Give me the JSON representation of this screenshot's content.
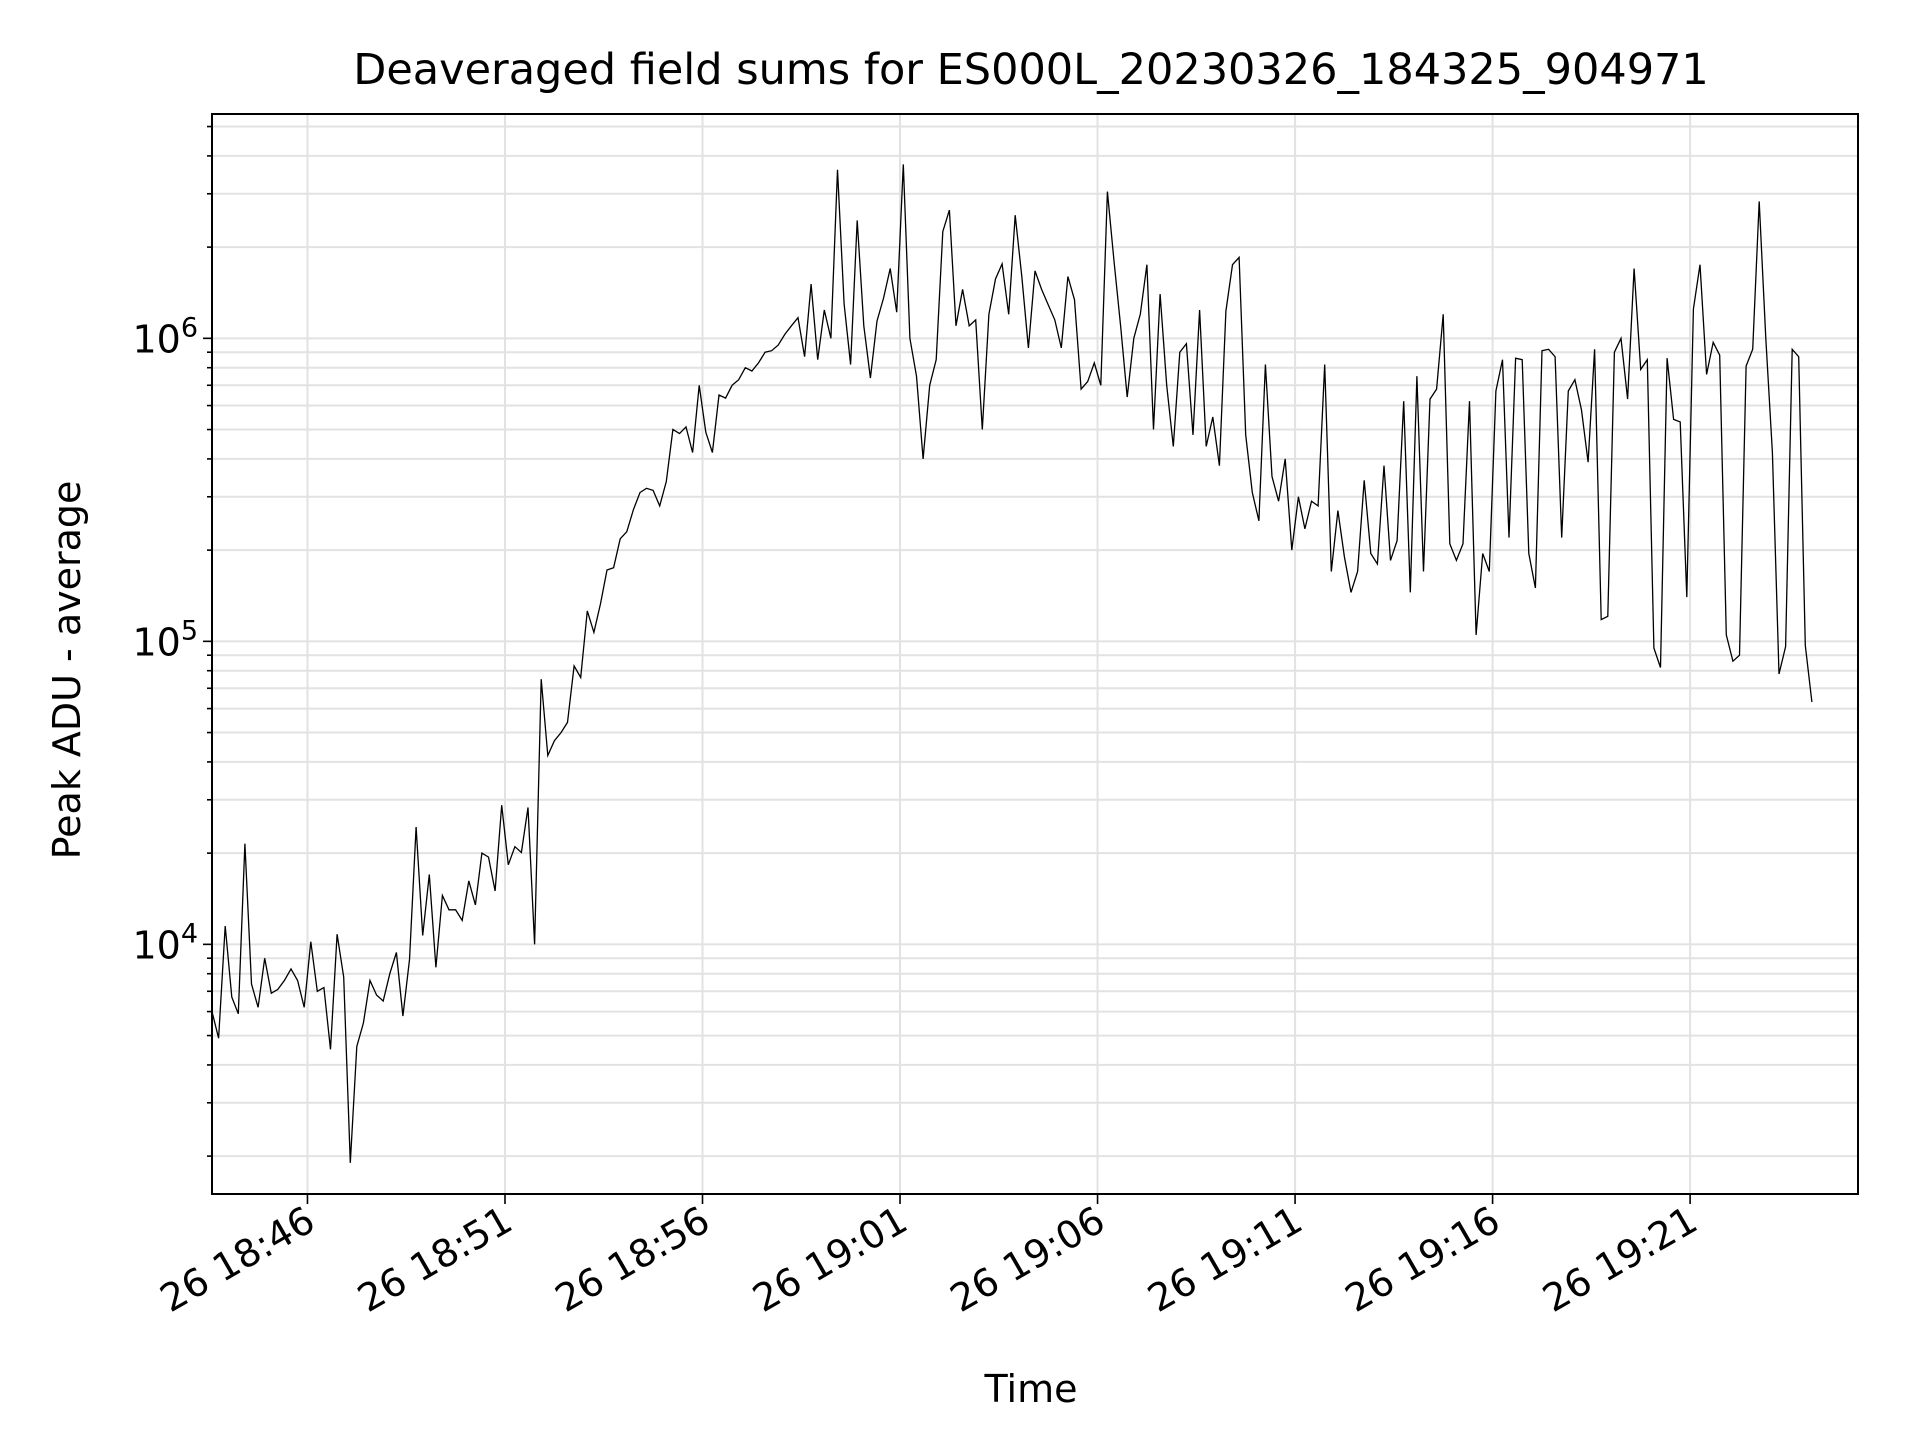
{
  "chart_data": {
    "type": "line",
    "title": "Deaveraged field sums for ES000L_20230326_184325_904971",
    "xlabel": "Time",
    "ylabel": "Peak ADU - average",
    "yscale": "log",
    "ylim": [
      1500,
      5500000
    ],
    "xlim": [
      "2023-03-26T18:43:35",
      "2023-03-26T19:25:15"
    ],
    "grid": true,
    "series_color": "#000000",
    "x_ticks": [
      {
        "label": "26 18:46",
        "t": "2023-03-26T18:46:00"
      },
      {
        "label": "26 18:51",
        "t": "2023-03-26T18:51:00"
      },
      {
        "label": "26 18:56",
        "t": "2023-03-26T18:56:00"
      },
      {
        "label": "26 19:01",
        "t": "2023-03-26T19:01:00"
      },
      {
        "label": "26 19:06",
        "t": "2023-03-26T19:06:00"
      },
      {
        "label": "26 19:11",
        "t": "2023-03-26T19:11:00"
      },
      {
        "label": "26 19:16",
        "t": "2023-03-26T19:16:00"
      },
      {
        "label": "26 19:21",
        "t": "2023-03-26T19:21:00"
      }
    ],
    "y_ticks": [
      {
        "base": "10",
        "exp": "4",
        "value": 10000
      },
      {
        "base": "10",
        "exp": "5",
        "value": 100000
      },
      {
        "base": "10",
        "exp": "6",
        "value": 1000000
      }
    ],
    "series": [
      {
        "t_start": "2023-03-26T18:43:35",
        "t_step_seconds": 10,
        "values": [
          6000,
          4900,
          11500,
          6700,
          5900,
          21500,
          7400,
          6200,
          9000,
          6900,
          7100,
          7600,
          8300,
          7600,
          6200,
          10200,
          7000,
          7200,
          4500,
          10800,
          7800,
          1900,
          4600,
          5500,
          7600,
          6800,
          6500,
          8000,
          9400,
          5800,
          8900,
          24400,
          10700,
          17000,
          8400,
          14500,
          13000,
          13000,
          12000,
          16200,
          13500,
          20000,
          19400,
          15000,
          28800,
          18300,
          21000,
          20100,
          28300,
          10000,
          75000,
          42000,
          47000,
          50000,
          54000,
          83000,
          76000,
          126000,
          107000,
          133000,
          172000,
          175000,
          218000,
          230000,
          272000,
          310000,
          320000,
          315000,
          280000,
          337000,
          500000,
          485000,
          510000,
          420000,
          700000,
          490000,
          420000,
          650000,
          635000,
          700000,
          730000,
          800000,
          780000,
          830000,
          900000,
          910000,
          950000,
          1030000,
          1100000,
          1170000,
          870000,
          1510000,
          850000,
          1240000,
          1000000,
          3600000,
          1300000,
          820000,
          2450000,
          1100000,
          740000,
          1140000,
          1360000,
          1700000,
          1220000,
          3750000,
          1000000,
          750000,
          400000,
          700000,
          850000,
          2250000,
          2650000,
          1100000,
          1450000,
          1100000,
          1150000,
          500000,
          1200000,
          1570000,
          1760000,
          1200000,
          2550000,
          1600000,
          930000,
          1670000,
          1450000,
          1290000,
          1150000,
          930000,
          1600000,
          1340000,
          680000,
          720000,
          830000,
          700000,
          3050000,
          1800000,
          1100000,
          640000,
          1000000,
          1200000,
          1750000,
          500000,
          1400000,
          700000,
          440000,
          900000,
          960000,
          480000,
          1240000,
          440000,
          550000,
          380000,
          1230000,
          1750000,
          1850000,
          480000,
          310000,
          250000,
          820000,
          350000,
          290000,
          400000,
          200000,
          300000,
          235000,
          290000,
          280000,
          820000,
          170000,
          270000,
          190000,
          145000,
          170000,
          340000,
          195000,
          180000,
          380000,
          185000,
          215000,
          620000,
          145000,
          750000,
          170000,
          630000,
          680000,
          1200000,
          210000,
          185000,
          210000,
          620000,
          105000,
          195000,
          170000,
          670000,
          850000,
          220000,
          860000,
          850000,
          195000,
          150000,
          910000,
          920000,
          870000,
          220000,
          670000,
          730000,
          580000,
          390000,
          920000,
          118000,
          121000,
          900000,
          1000000,
          630000,
          1700000,
          790000,
          850000,
          95000,
          82000,
          860000,
          540000,
          530000,
          140000,
          1250000,
          1750000,
          760000,
          970000,
          880000,
          105000,
          86000,
          90000,
          810000,
          920000,
          2830000,
          1000000,
          420000,
          78000,
          96000,
          920000,
          870000,
          97000,
          63000
        ]
      }
    ]
  }
}
